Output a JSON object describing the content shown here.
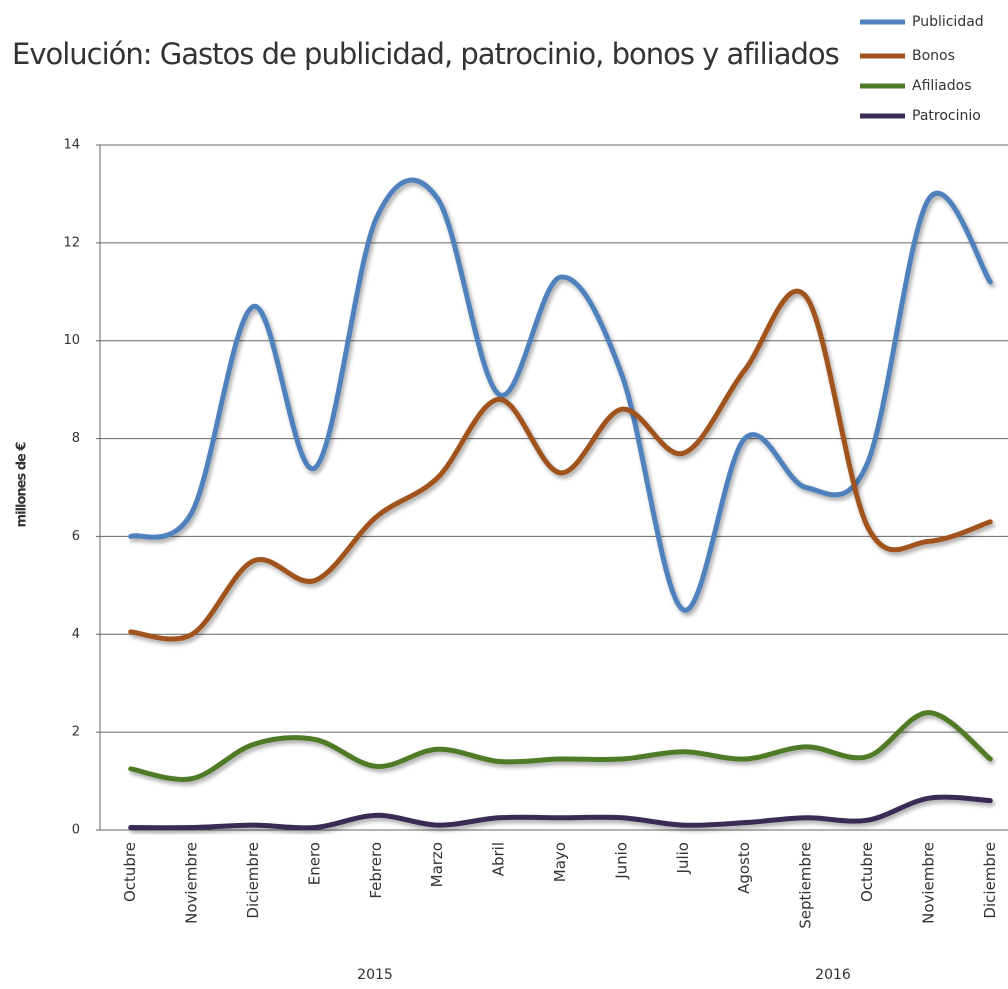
{
  "chart_data": {
    "type": "line",
    "title": "Evolución: Gastos de publicidad, patrocinio, bonos y afiliados",
    "y_label": "millones de €",
    "categories": [
      "Octubre",
      "Noviembre",
      "Diciembre",
      "Enero",
      "Febrero",
      "Marzo",
      "Abril",
      "Mayo",
      "Junio",
      "Julio",
      "Agosto",
      "Septiembre",
      "Octubre",
      "Noviembre",
      "Diciembre"
    ],
    "year_labels": [
      "2015",
      "2016"
    ],
    "series": [
      {
        "name": "Publicidad",
        "color": "#4f81bd",
        "values": [
          6.0,
          6.5,
          10.7,
          7.4,
          12.5,
          12.9,
          8.9,
          11.3,
          9.3,
          4.5,
          8.0,
          7.0,
          7.5,
          12.9,
          11.2
        ]
      },
      {
        "name": "Bonos",
        "color": "#a0521a",
        "values": [
          4.05,
          4.0,
          5.5,
          5.1,
          6.4,
          7.2,
          8.8,
          7.3,
          8.6,
          7.7,
          9.4,
          10.9,
          6.2,
          5.9,
          6.3
        ]
      },
      {
        "name": "Afiliados",
        "color": "#4f7a28",
        "values": [
          1.25,
          1.05,
          1.75,
          1.85,
          1.3,
          1.65,
          1.4,
          1.45,
          1.45,
          1.6,
          1.45,
          1.7,
          1.5,
          2.4,
          1.45
        ]
      },
      {
        "name": "Patrocinio",
        "color": "#3b2a55",
        "values": [
          0.05,
          0.05,
          0.1,
          0.05,
          0.3,
          0.1,
          0.25,
          0.25,
          0.25,
          0.1,
          0.15,
          0.25,
          0.2,
          0.65,
          0.6
        ]
      }
    ],
    "ylim": [
      0,
      14
    ],
    "yticks": [
      0,
      2,
      4,
      6,
      8,
      10,
      12,
      14
    ],
    "grid": true,
    "legend": "top-right",
    "smooth": true
  }
}
